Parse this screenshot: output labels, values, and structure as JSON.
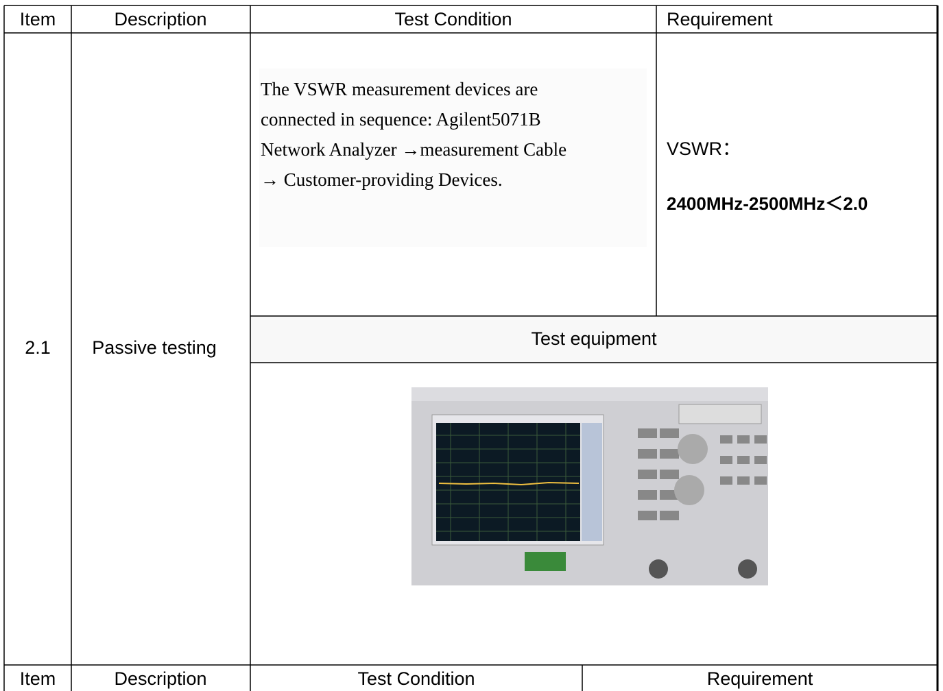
{
  "table": {
    "header": [
      "Item",
      "Description",
      "Test Condition",
      "Requirement"
    ],
    "row": {
      "item": "2.1",
      "description": "Passive testing",
      "test_condition": [
        "The VSWR measurement devices are",
        "connected in sequence: Agilent5071B",
        "Network Analyzer →measurement Cable",
        "→ Customer-providing Devices."
      ],
      "requirement": [
        "VSWR：",
        "2400MHz-2500MHz＜2.0"
      ],
      "equipment_heading": "Test equipment"
    },
    "next_header": [
      "Item",
      "Description",
      "Test Condition",
      "Requirement"
    ]
  }
}
